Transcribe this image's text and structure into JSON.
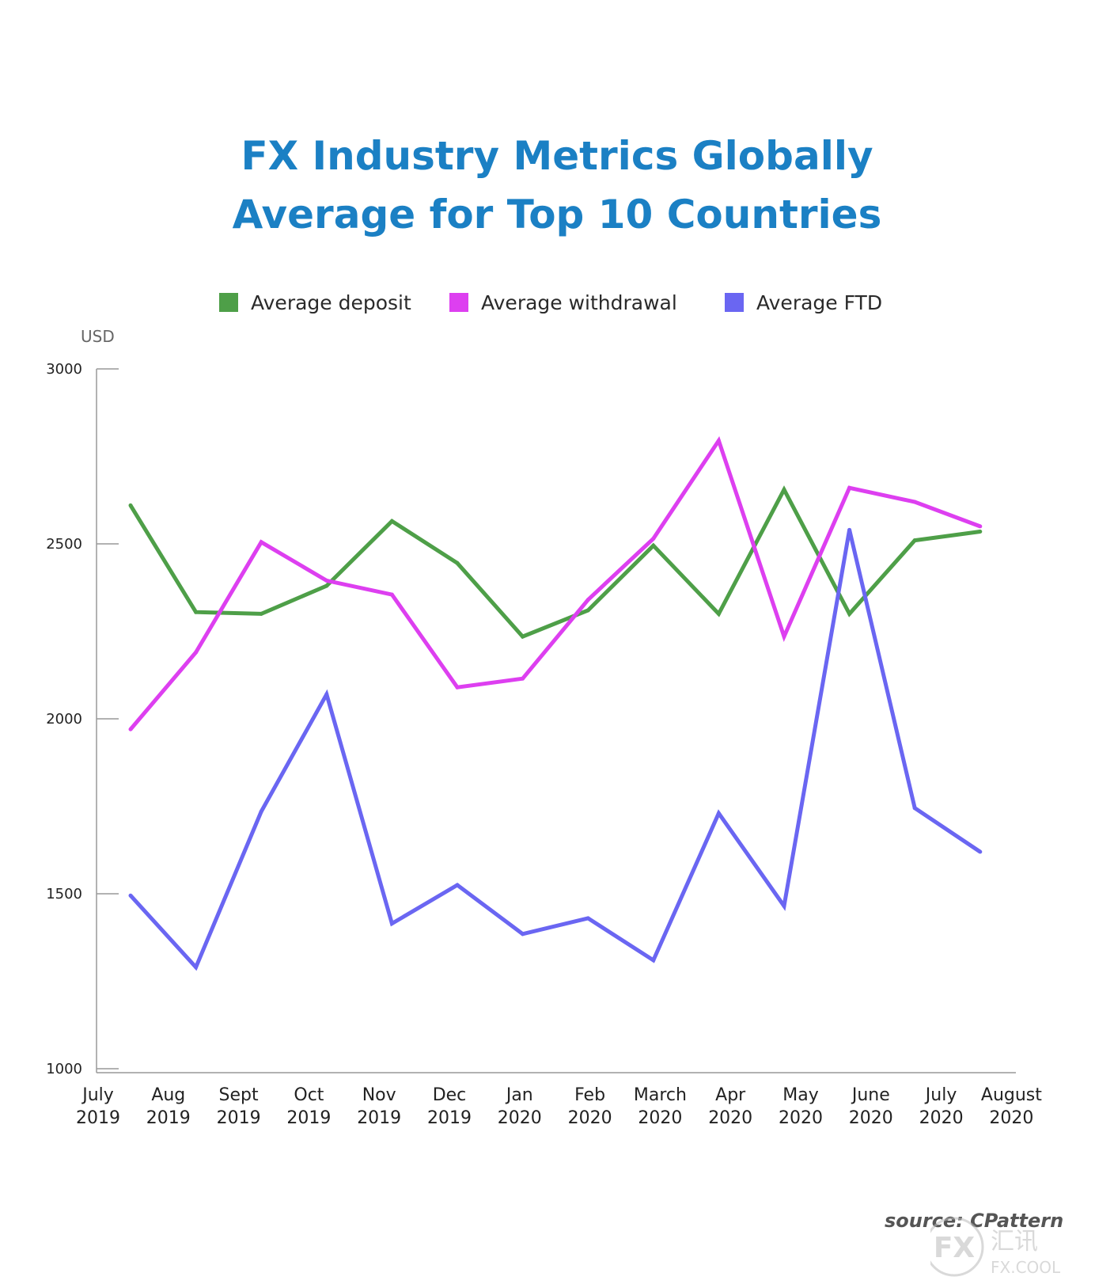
{
  "chart_data": {
    "type": "line",
    "title": [
      "FX Industry Metrics Globally",
      "Average for Top 10 Countries"
    ],
    "ylabel": "USD",
    "xlabel": "",
    "ylim": [
      1000,
      3000
    ],
    "yticks": [
      1000,
      1500,
      2000,
      2500,
      3000
    ],
    "categories": [
      [
        "July",
        "2019"
      ],
      [
        "Aug",
        "2019"
      ],
      [
        "Sept",
        "2019"
      ],
      [
        "Oct",
        "2019"
      ],
      [
        "Nov",
        "2019"
      ],
      [
        "Dec",
        "2019"
      ],
      [
        "Jan",
        "2020"
      ],
      [
        "Feb",
        "2020"
      ],
      [
        "March",
        "2020"
      ],
      [
        "Apr",
        "2020"
      ],
      [
        "May",
        "2020"
      ],
      [
        "June",
        "2020"
      ],
      [
        "July",
        "2020"
      ],
      [
        "August",
        "2020"
      ]
    ],
    "series": [
      {
        "name": "Average deposit",
        "color": "#4e9f48",
        "values": [
          2610,
          2305,
          2300,
          2380,
          2565,
          2445,
          2235,
          2310,
          2495,
          2300,
          2655,
          2300,
          2510,
          2535
        ]
      },
      {
        "name": "Average withdrawal",
        "color": "#dd3ff0",
        "values": [
          1970,
          2190,
          2505,
          2395,
          2355,
          2090,
          2115,
          2340,
          2515,
          2795,
          2235,
          2660,
          2620,
          2550
        ]
      },
      {
        "name": "Average FTD",
        "color": "#6a66f2",
        "values": [
          1495,
          1290,
          1735,
          2070,
          1415,
          1525,
          1385,
          1430,
          1310,
          1730,
          1465,
          2540,
          1745,
          1620
        ]
      }
    ],
    "grid": false,
    "legend_position": "top"
  },
  "source": "source: CPattern",
  "watermark": {
    "logo": "FX",
    "text": "汇讯",
    "domain": "FX.COOL"
  }
}
